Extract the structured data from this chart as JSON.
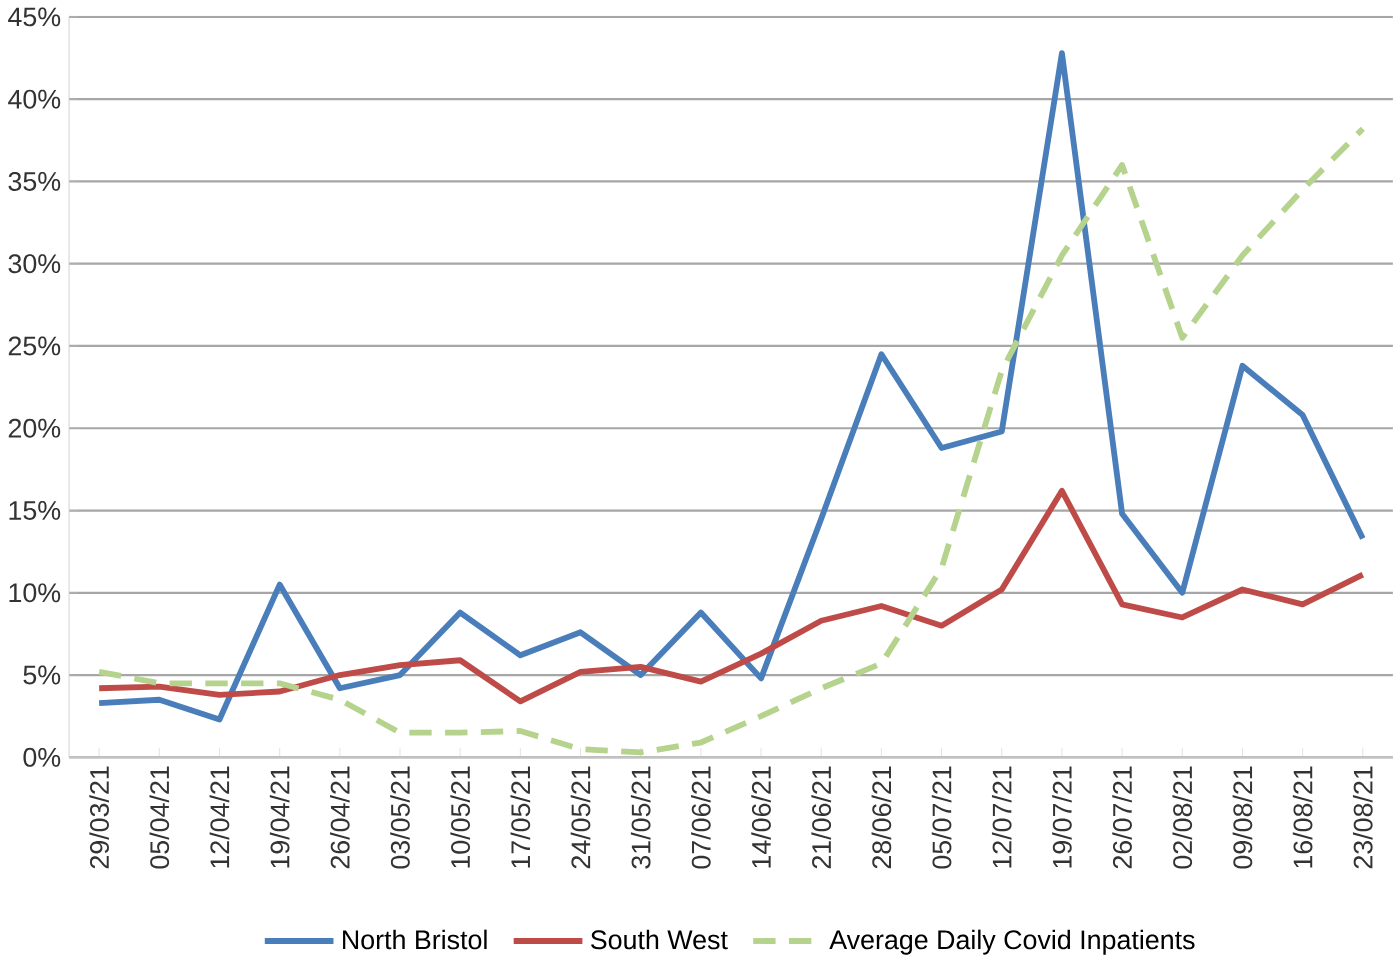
{
  "chart_data": {
    "type": "line",
    "categories": [
      "29/03/21",
      "05/04/21",
      "12/04/21",
      "19/04/21",
      "26/04/21",
      "03/05/21",
      "10/05/21",
      "17/05/21",
      "24/05/21",
      "31/05/21",
      "07/06/21",
      "14/06/21",
      "21/06/21",
      "28/06/21",
      "05/07/21",
      "12/07/21",
      "19/07/21",
      "26/07/21",
      "02/08/21",
      "09/08/21",
      "16/08/21",
      "23/08/21"
    ],
    "series": [
      {
        "name": "North Bristol",
        "color": "#4a7ebb",
        "line_style": "solid",
        "values": [
          3.3,
          3.5,
          2.3,
          10.5,
          4.2,
          5.0,
          8.8,
          6.2,
          7.6,
          5.0,
          8.8,
          4.8,
          14.5,
          24.5,
          18.8,
          19.8,
          42.8,
          14.8,
          10.0,
          23.8,
          20.8,
          13.3
        ]
      },
      {
        "name": "South West",
        "color": "#be4b48",
        "line_style": "solid",
        "values": [
          4.2,
          4.3,
          3.8,
          4.0,
          5.0,
          5.6,
          5.9,
          3.4,
          5.2,
          5.5,
          4.6,
          6.3,
          8.3,
          9.2,
          8.0,
          10.2,
          16.2,
          9.3,
          8.5,
          10.2,
          9.3,
          11.1
        ]
      },
      {
        "name": "Average Daily Covid Inpatients",
        "color": "#b5d38d",
        "line_style": "dashed",
        "values": [
          5.2,
          4.5,
          4.5,
          4.5,
          3.5,
          1.5,
          1.5,
          1.6,
          0.5,
          0.3,
          0.9,
          2.5,
          4.2,
          5.7,
          11.5,
          23.5,
          30.5,
          36.0,
          25.5,
          30.5,
          34.5,
          38.2
        ]
      }
    ],
    "ylim": [
      0,
      45
    ],
    "yticks": [
      {
        "value": 0,
        "label": "0%"
      },
      {
        "value": 5,
        "label": "5%"
      },
      {
        "value": 10,
        "label": "10%"
      },
      {
        "value": 15,
        "label": "15%"
      },
      {
        "value": 20,
        "label": "20%"
      },
      {
        "value": 25,
        "label": "25%"
      },
      {
        "value": 30,
        "label": "30%"
      },
      {
        "value": 35,
        "label": "35%"
      },
      {
        "value": 40,
        "label": "40%"
      },
      {
        "value": 45,
        "label": "45%"
      }
    ],
    "grid": "y",
    "legend": "bottom",
    "marker": "none"
  }
}
